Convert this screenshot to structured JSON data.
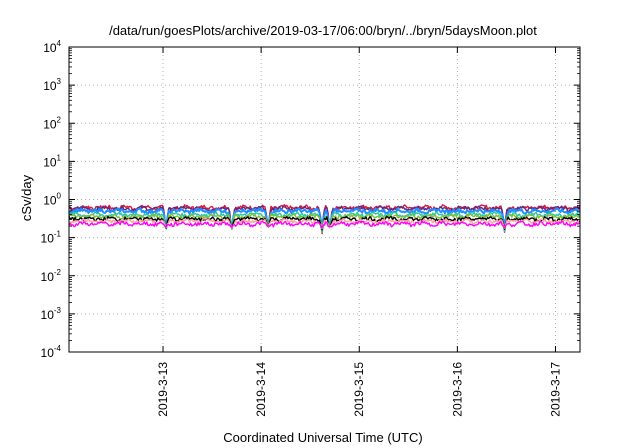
{
  "chart_data": {
    "type": "line",
    "title": "/data/run/goesPlots/archive/2019-03-17/06:00/bryn/../bryn/5daysMoon.plot",
    "xlabel": "Coordinated Universal Time (UTC)",
    "ylabel": "cSv/day",
    "yscale": "log",
    "ylim_exponents": [
      -4,
      4
    ],
    "y_tick_base": "10",
    "y_ticks": [
      {
        "exp": "4"
      },
      {
        "exp": "3"
      },
      {
        "exp": "2"
      },
      {
        "exp": "1"
      },
      {
        "exp": "0"
      },
      {
        "exp": "-1"
      },
      {
        "exp": "-2"
      },
      {
        "exp": "-3"
      },
      {
        "exp": "-4"
      }
    ],
    "x_range_days": [
      2019.0312,
      2019.03175
    ],
    "x_start": "2019-03-12T01:00",
    "x_end": "2019-03-17T06:00",
    "x_ticks": [
      {
        "label": "2019-3-13",
        "day": 13
      },
      {
        "label": "2019-3-14",
        "day": 14
      },
      {
        "label": "2019-3-15",
        "day": 15
      },
      {
        "label": "2019-3-16",
        "day": 16
      },
      {
        "label": "2019-3-17",
        "day": 17
      }
    ],
    "grid": true,
    "series": [
      {
        "color": "#e8112d",
        "level": 0.62
      },
      {
        "color": "#5b2a86",
        "level": 0.58
      },
      {
        "color": "#1f8fff",
        "level": 0.5
      },
      {
        "color": "#27c9a0",
        "level": 0.4
      },
      {
        "color": "#7fbf3f",
        "level": 0.36
      },
      {
        "color": "#000000",
        "level": 0.31
      },
      {
        "color": "#ff9f9f",
        "level": 0.27
      },
      {
        "color": "#ff00ff",
        "level": 0.23
      }
    ],
    "dips": [
      {
        "day": 13.03,
        "min": 0.12
      },
      {
        "day": 13.7,
        "min": 0.12
      },
      {
        "day": 14.07,
        "min": 0.14
      },
      {
        "day": 14.62,
        "min": 0.11
      },
      {
        "day": 14.7,
        "min": 0.13
      },
      {
        "day": 16.48,
        "min": 0.12
      }
    ]
  }
}
